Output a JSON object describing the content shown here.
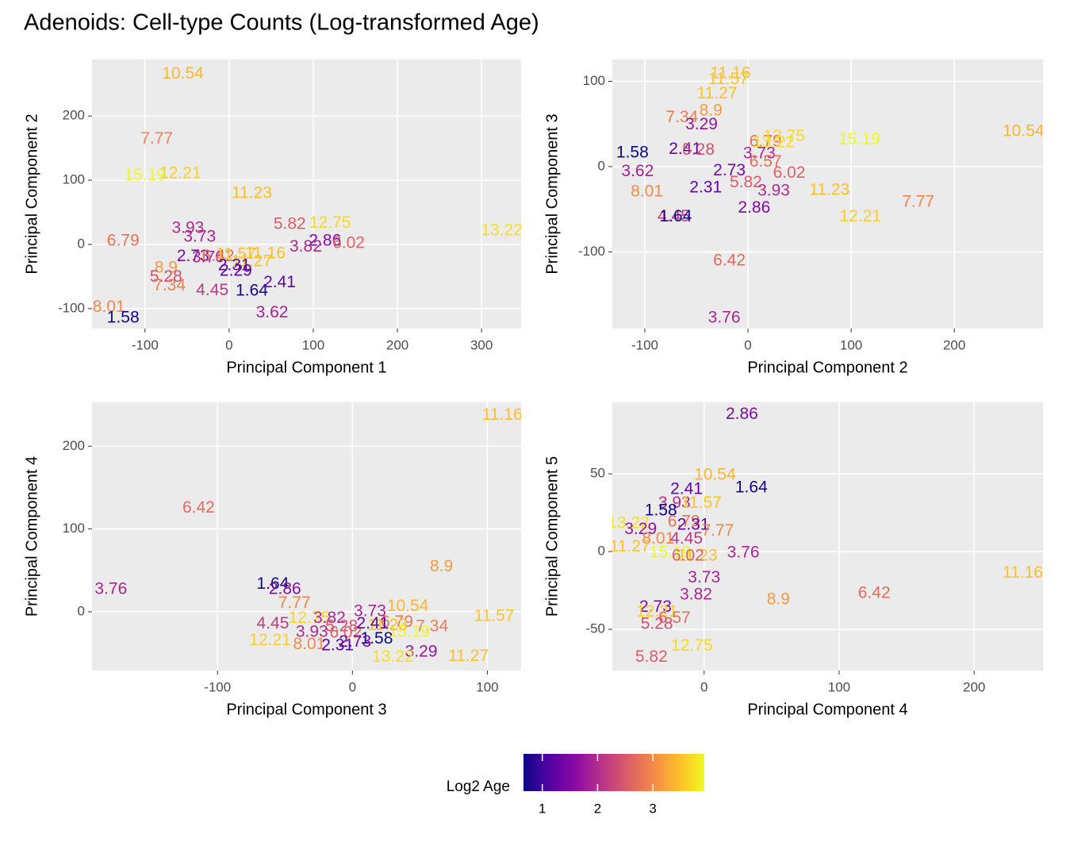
{
  "title": "Adenoids: Cell-type Counts (Log-transformed Age)",
  "legend": {
    "title": "Log2 Age",
    "lim": [
      0.66,
      3.93
    ],
    "ticks": [
      1,
      2,
      3
    ],
    "position": "bottom",
    "colormap": [
      "#0d0887",
      "#5302a3",
      "#8b0aa5",
      "#b83289",
      "#db5c68",
      "#f48849",
      "#febd2a",
      "#f0f921"
    ]
  },
  "chart_data": [
    {
      "type": "scatter",
      "xlabel": "Principal Component 1",
      "ylabel": "Principal Component 2",
      "xlim": [
        -163,
        347
      ],
      "ylim": [
        -131,
        288
      ],
      "xticks": [
        -100,
        0,
        100,
        200,
        300
      ],
      "yticks": [
        -100,
        0,
        100,
        200
      ],
      "grid": true,
      "labels": [
        10.54,
        7.77,
        15.19,
        12.21,
        11.23,
        6.79,
        3.93,
        3.73,
        5.82,
        12.75,
        2.86,
        3.82,
        6.02,
        13.22,
        2.73,
        3.76,
        6.42,
        11.57,
        11.27,
        11.16,
        2.29,
        2.31,
        8.9,
        5.28,
        7.34,
        4.45,
        1.64,
        2.41,
        3.62,
        8.01,
        1.58
      ],
      "x": [
        -55,
        -86,
        -100,
        -58,
        27,
        -126,
        -49,
        -35,
        72,
        120,
        114,
        91,
        142,
        324,
        -43,
        -25,
        -13,
        8,
        27,
        43,
        8,
        6,
        -75,
        -75,
        -71,
        -20,
        27,
        60,
        51,
        -143,
        -126
      ],
      "y": [
        265,
        164,
        107,
        110,
        79,
        5,
        25,
        11,
        31,
        33,
        5,
        -4,
        1,
        21,
        -19,
        -21,
        -19,
        -16,
        -27,
        -15,
        -42,
        -33,
        -37,
        -51,
        -65,
        -72,
        -73,
        -60,
        -107,
        -98,
        -115
      ]
    },
    {
      "type": "scatter",
      "xlabel": "Principal Component 2",
      "ylabel": "Principal Component 3",
      "xlim": [
        -131.5,
        286
      ],
      "ylim": [
        -190,
        125.6
      ],
      "xticks": [
        -100,
        0,
        100,
        200
      ],
      "yticks": [
        -100,
        0,
        100
      ],
      "grid": true,
      "labels": [
        11.16,
        11.57,
        11.27,
        8.9,
        7.34,
        3.29,
        1.58,
        2.41,
        5.28,
        6.79,
        12.75,
        13.22,
        15.19,
        10.54,
        3.73,
        3.62,
        6.57,
        2.73,
        5.82,
        6.02,
        8.01,
        2.31,
        3.93,
        11.23,
        7.77,
        2.86,
        12.21,
        4.45,
        1.64,
        6.42,
        3.76
      ],
      "x": [
        -17,
        -19,
        -30,
        -36,
        -64,
        -45,
        -112,
        -61,
        -48,
        17,
        35,
        25,
        108,
        267,
        11,
        -107,
        17,
        -18,
        -2,
        40,
        -98,
        -41,
        25,
        79,
        165,
        6,
        109,
        -72,
        -70,
        -18,
        -23
      ],
      "y": [
        109,
        102,
        85,
        65,
        57,
        49,
        16,
        20,
        19,
        29,
        35,
        28,
        31,
        41,
        15,
        -6,
        5,
        -5,
        -19,
        -8,
        -30,
        -25,
        -29,
        -28,
        -42,
        -49,
        -59,
        -59,
        -59,
        -111,
        -178
      ]
    },
    {
      "type": "scatter",
      "xlabel": "Principal Component 3",
      "ylabel": "Principal Component 4",
      "xlim": [
        -193,
        125
      ],
      "ylim": [
        -71,
        253
      ],
      "xticks": [
        -100,
        0,
        100
      ],
      "yticks": [
        0,
        100,
        200
      ],
      "grid": true,
      "labels": [
        11.16,
        6.42,
        3.76,
        8.9,
        1.64,
        2.86,
        7.77,
        10.54,
        3.73,
        11.57,
        4.45,
        12.75,
        3.82,
        6.79,
        7.34,
        5.28,
        3.93,
        6.02,
        1.58,
        15.19,
        12.21,
        8.01,
        2.73,
        2.31,
        3.29,
        13.22,
        11.27,
        11.23,
        2.41
      ],
      "x": [
        111,
        -114,
        -179,
        66,
        -59,
        -50,
        -43,
        41,
        13,
        105,
        -59,
        -32,
        -17,
        33,
        59,
        -8,
        -30,
        -5,
        18,
        42,
        -61,
        -32,
        2,
        -11,
        51,
        30,
        86,
        26,
        15
      ],
      "y": [
        237,
        125,
        27,
        54,
        33,
        27,
        10,
        6,
        0,
        -6,
        -15,
        -8,
        -8,
        -13,
        -18,
        -18,
        -25,
        -26,
        -33,
        -25,
        -35,
        -40,
        -37,
        -41,
        -49,
        -55,
        -54,
        -17,
        -15
      ]
    },
    {
      "type": "scatter",
      "xlabel": "Principal Component 4",
      "ylabel": "Principal Component 5",
      "xlim": [
        -68,
        251
      ],
      "ylim": [
        -76.5,
        96
      ],
      "xticks": [
        0,
        100,
        200
      ],
      "yticks": [
        -50,
        0,
        50
      ],
      "grid": true,
      "labels": [
        2.86,
        10.54,
        1.64,
        2.41,
        3.93,
        11.57,
        1.58,
        13.22,
        3.29,
        6.79,
        2.31,
        7.77,
        8.01,
        4.45,
        11.27,
        15.19,
        11.23,
        6.02,
        3.76,
        11.16,
        3.73,
        3.82,
        8.9,
        6.42,
        2.73,
        12.21,
        6.57,
        5.28,
        12.75,
        5.82
      ],
      "x": [
        28,
        8,
        35,
        -13,
        -22,
        -2,
        -32,
        -56,
        -47,
        -15,
        -8,
        10,
        -34,
        -13,
        -55,
        -25,
        -5,
        -12,
        29,
        236,
        0,
        -6,
        55,
        126,
        -36,
        -35,
        -22,
        -35,
        -9,
        -39
      ],
      "y": [
        88,
        49,
        41,
        40,
        31,
        31,
        26,
        18,
        14,
        19,
        17,
        13,
        8,
        8,
        3,
        -1,
        -3,
        -3,
        -1,
        -14,
        -17,
        -28,
        -31,
        -27,
        -36,
        -39,
        -43,
        -47,
        -61,
        -68
      ]
    }
  ]
}
